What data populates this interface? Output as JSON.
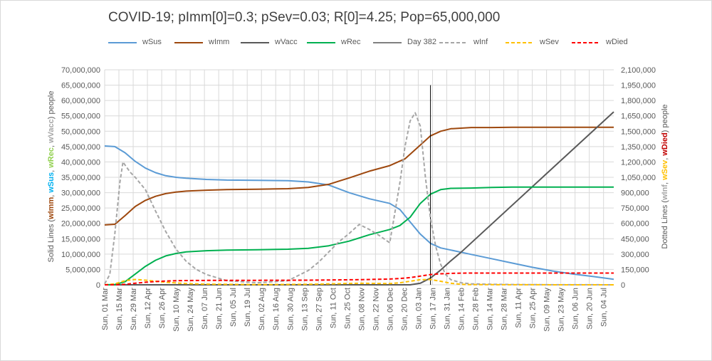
{
  "chart_data": {
    "type": "line",
    "title": "COVID-19; pImm[0]=0.3; pSev=0.03; R[0]=4.25; Pop=65,000,000",
    "y_left_label_parts": [
      {
        "text": "Solid Lines (",
        "color": "#595959"
      },
      {
        "text": "wImm",
        "color": "#9e480e"
      },
      {
        "text": ", ",
        "color": "#595959"
      },
      {
        "text": "wSus",
        "color": "#00b0f0"
      },
      {
        "text": ", ",
        "color": "#595959"
      },
      {
        "text": "wRec",
        "color": "#92d050"
      },
      {
        "text": ", ",
        "color": "#595959"
      },
      {
        "text": "wVacc",
        "color": "#a6a6a6"
      },
      {
        "text": ") people",
        "color": "#595959"
      }
    ],
    "y_right_label_parts": [
      {
        "text": "Dotted Lines (",
        "color": "#595959"
      },
      {
        "text": "wInf",
        "color": "#a6a6a6"
      },
      {
        "text": ", ",
        "color": "#595959"
      },
      {
        "text": "wSev",
        "color": "#ffc000"
      },
      {
        "text": ", ",
        "color": "#595959"
      },
      {
        "text": "wDied",
        "color": "#c00000"
      },
      {
        "text": ") people",
        "color": "#595959"
      }
    ],
    "x_range_days": [
      0,
      500
    ],
    "y_left_range": [
      0,
      70000000
    ],
    "y_right_range": [
      0,
      2100000
    ],
    "y_left_ticks": [
      0,
      5000000,
      10000000,
      15000000,
      20000000,
      25000000,
      30000000,
      35000000,
      40000000,
      45000000,
      50000000,
      55000000,
      60000000,
      65000000,
      70000000
    ],
    "y_left_tick_labels": [
      "0",
      "5,000,000",
      "10,000,000",
      "15,000,000",
      "20,000,000",
      "25,000,000",
      "30,000,000",
      "35,000,000",
      "40,000,000",
      "45,000,000",
      "50,000,000",
      "55,000,000",
      "60,000,000",
      "65,000,000",
      "70,000,000"
    ],
    "y_right_ticks": [
      0,
      150000,
      300000,
      450000,
      600000,
      750000,
      900000,
      1050000,
      1200000,
      1350000,
      1500000,
      1650000,
      1800000,
      1950000,
      2100000
    ],
    "y_right_tick_labels": [
      "0",
      "150,000",
      "300,000",
      "450,000",
      "600,000",
      "750,000",
      "900,000",
      "1,050,000",
      "1,200,000",
      "1,350,000",
      "1,500,000",
      "1,650,000",
      "1,800,000",
      "1,950,000",
      "2,100,000"
    ],
    "x_tick_labels": [
      "Sun, 01 Mar",
      "Sun, 15 Mar",
      "Sun, 29 Mar",
      "Sun, 12 Apr",
      "Sun, 26 Apr",
      "Sun, 10 May",
      "Sun, 24 May",
      "Sun, 07 Jun",
      "Sun, 21 Jun",
      "Sun, 05 Jul",
      "Sun, 19 Jul",
      "Sun, 02 Aug",
      "Sun, 16 Aug",
      "Sun, 30 Aug",
      "Sun, 13 Sep",
      "Sun, 27 Sep",
      "Sun, 11 Oct",
      "Sun, 25 Oct",
      "Sun, 08 Nov",
      "Sun, 22 Nov",
      "Sun, 06 Dec",
      "Sun, 20 Dec",
      "Sun, 03 Jan",
      "Sun, 17 Jan",
      "Sun, 31 Jan",
      "Sun, 14 Feb",
      "Sun, 28 Feb",
      "Sun, 14 Mar",
      "Sun, 28 Mar",
      "Sun, 11 Apr",
      "Sun, 25 Apr",
      "Sun, 09 May",
      "Sun, 23 May",
      "Sun, 06 Jun",
      "Sun, 20 Jun",
      "Sun, 04 Jul"
    ],
    "x_tick_days": [
      0,
      14,
      28,
      42,
      56,
      70,
      84,
      98,
      112,
      126,
      140,
      154,
      168,
      182,
      196,
      210,
      224,
      238,
      252,
      266,
      280,
      294,
      308,
      322,
      336,
      350,
      364,
      378,
      392,
      406,
      420,
      434,
      448,
      462,
      476,
      490
    ],
    "grid": true,
    "legend_position": "top",
    "series": [
      {
        "name": "wSus",
        "axis": "left",
        "style": "solid",
        "color": "#5b9bd5",
        "x": [
          0,
          10,
          20,
          30,
          40,
          50,
          60,
          70,
          80,
          100,
          120,
          150,
          180,
          200,
          220,
          240,
          260,
          280,
          290,
          300,
          310,
          320,
          330,
          340,
          360,
          380,
          400,
          420,
          440,
          460,
          480,
          500
        ],
        "y": [
          45200000,
          45000000,
          43000000,
          40200000,
          38000000,
          36500000,
          35500000,
          35000000,
          34700000,
          34300000,
          34100000,
          34000000,
          33900000,
          33500000,
          32500000,
          30000000,
          28000000,
          26500000,
          24500000,
          20500000,
          16500000,
          13500000,
          12000000,
          11300000,
          9900000,
          8500000,
          7100000,
          5700000,
          4500000,
          3500000,
          2700000,
          1800000
        ]
      },
      {
        "name": "wImm",
        "axis": "left",
        "style": "solid",
        "color": "#9e480e",
        "x": [
          0,
          10,
          20,
          30,
          40,
          50,
          60,
          70,
          80,
          100,
          120,
          150,
          180,
          200,
          220,
          240,
          260,
          280,
          295,
          310,
          320,
          330,
          340,
          360,
          380,
          400,
          500
        ],
        "y": [
          19500000,
          19700000,
          22500000,
          25500000,
          27500000,
          28800000,
          29700000,
          30200000,
          30500000,
          30800000,
          31000000,
          31100000,
          31300000,
          31700000,
          32700000,
          34800000,
          37000000,
          38800000,
          41000000,
          45500000,
          48500000,
          50000000,
          50800000,
          51200000,
          51200000,
          51300000,
          51300000
        ]
      },
      {
        "name": "wVacc",
        "axis": "left",
        "style": "solid",
        "color": "#595959",
        "x": [
          0,
          300,
          310,
          320,
          330,
          340,
          350,
          500
        ],
        "y": [
          0,
          0,
          500000,
          2200000,
          4800000,
          7800000,
          10600000,
          56300000
        ]
      },
      {
        "name": "wRec",
        "axis": "left",
        "style": "solid",
        "color": "#00b050",
        "x": [
          0,
          10,
          20,
          30,
          40,
          50,
          60,
          70,
          80,
          100,
          120,
          150,
          180,
          200,
          220,
          240,
          260,
          280,
          290,
          300,
          310,
          320,
          330,
          340,
          360,
          380,
          400,
          500
        ],
        "y": [
          0,
          100000,
          1000000,
          3500000,
          6000000,
          8000000,
          9400000,
          10200000,
          10700000,
          11100000,
          11300000,
          11400000,
          11600000,
          11900000,
          12700000,
          14200000,
          16300000,
          18000000,
          19300000,
          22000000,
          26500000,
          29500000,
          31000000,
          31400000,
          31500000,
          31700000,
          31800000,
          31800000
        ]
      },
      {
        "name": "Day 382",
        "axis": "left",
        "style": "solid",
        "color": "#000000",
        "x": [
          320,
          320
        ],
        "y": [
          0,
          65000000
        ]
      },
      {
        "name": "wInf",
        "axis": "right",
        "style": "dashed",
        "color": "#a6a6a6",
        "x": [
          0,
          5,
          10,
          15,
          18,
          20,
          25,
          30,
          40,
          50,
          60,
          70,
          80,
          90,
          100,
          120,
          150,
          180,
          200,
          210,
          220,
          230,
          240,
          250,
          260,
          270,
          280,
          285,
          290,
          295,
          300,
          305,
          310,
          315,
          320,
          325,
          330,
          335,
          340,
          350,
          360,
          380,
          400,
          440,
          480,
          500
        ],
        "y": [
          10000,
          100000,
          500000,
          1000000,
          1200000,
          1170000,
          1100000,
          1050000,
          930000,
          720000,
          520000,
          350000,
          230000,
          150000,
          100000,
          40000,
          20000,
          40000,
          140000,
          220000,
          320000,
          420000,
          500000,
          590000,
          540000,
          480000,
          410000,
          700000,
          1000000,
          1350000,
          1600000,
          1680000,
          1550000,
          1050000,
          650000,
          380000,
          200000,
          100000,
          50000,
          20000,
          10000,
          5000,
          3000,
          1000,
          500,
          300
        ]
      },
      {
        "name": "wSev",
        "axis": "right",
        "style": "dashed",
        "color": "#ffc000",
        "x": [
          0,
          10,
          20,
          30,
          40,
          50,
          60,
          70,
          80,
          100,
          150,
          200,
          250,
          280,
          290,
          300,
          310,
          320,
          330,
          340,
          350,
          360,
          400,
          500
        ],
        "y": [
          0,
          10000,
          40000,
          52000,
          45000,
          35000,
          25000,
          18000,
          12000,
          6000,
          2000,
          5000,
          15000,
          12000,
          20000,
          35000,
          50000,
          52000,
          35000,
          15000,
          5000,
          2000,
          500,
          200
        ]
      },
      {
        "name": "wDied",
        "axis": "right",
        "style": "dashed",
        "color": "#ff0000",
        "x": [
          0,
          10,
          20,
          30,
          40,
          50,
          60,
          70,
          80,
          100,
          150,
          200,
          250,
          280,
          290,
          300,
          310,
          320,
          330,
          340,
          350,
          360,
          400,
          500
        ],
        "y": [
          0,
          1000,
          5000,
          15000,
          25000,
          32000,
          37000,
          40000,
          42000,
          43000,
          44000,
          45000,
          50000,
          56000,
          62000,
          70000,
          85000,
          100000,
          108000,
          112000,
          114000,
          115000,
          115000,
          115000
        ]
      }
    ]
  }
}
